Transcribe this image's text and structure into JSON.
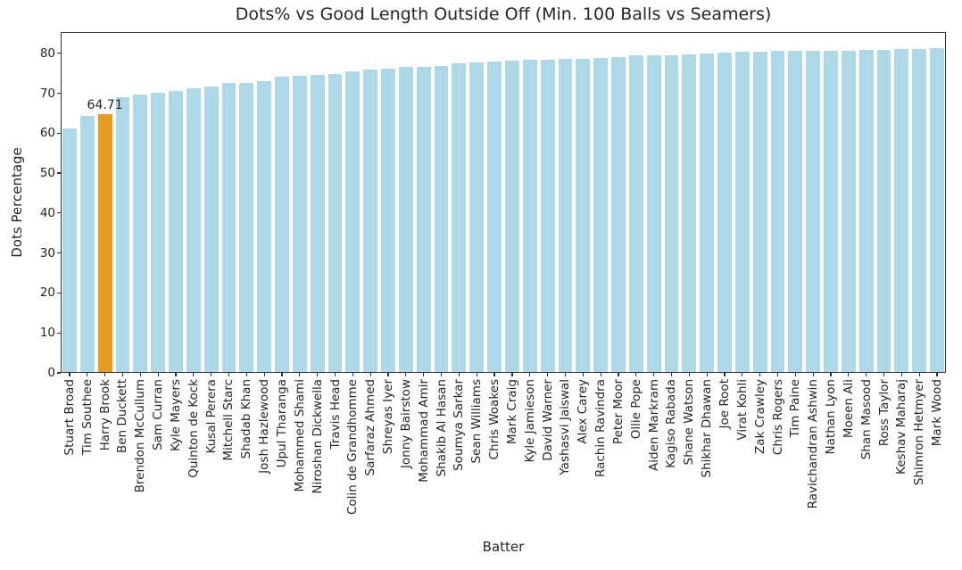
{
  "chart_data": {
    "type": "bar",
    "title": "Dots% vs Good Length Outside Off (Min. 100 Balls vs Seamers)",
    "xlabel": "Batter",
    "ylabel": "Dots Percentage",
    "categories": [
      "Stuart Broad",
      "Tim Southee",
      "Harry Brook",
      "Ben Duckett",
      "Brendon McCullum",
      "Sam Curran",
      "Kyle Mayers",
      "Quinton de Kock",
      "Kusal Perera",
      "Mitchell Starc",
      "Shadab Khan",
      "Josh Hazlewood",
      "Upul Tharanga",
      "Mohammed Shami",
      "Niroshan Dickwella",
      "Travis Head",
      "Colin de Grandhomme",
      "Sarfaraz Ahmed",
      "Shreyas Iyer",
      "Jonny Bairstow",
      "Mohammad Amir",
      "Shakib Al Hasan",
      "Soumya Sarkar",
      "Sean Williams",
      "Chris Woakes",
      "Mark Craig",
      "Kyle Jamieson",
      "David Warner",
      "Yashasvi Jaiswal",
      "Alex Carey",
      "Rachin Ravindra",
      "Peter Moor",
      "Ollie Pope",
      "Aiden Markram",
      "Kagiso Rabada",
      "Shane Watson",
      "Shikhar Dhawan",
      "Joe Root",
      "Virat Kohli",
      "Zak Crawley",
      "Chris Rogers",
      "Tim Paine",
      "Ravichandran Ashwin",
      "Nathan Lyon",
      "Moeen Ali",
      "Shan Masood",
      "Ross Taylor",
      "Keshav Maharaj",
      "Shimron Hetmyer",
      "Mark Wood"
    ],
    "values": [
      61.2,
      64.4,
      64.71,
      69.1,
      69.7,
      70.1,
      70.6,
      71.2,
      71.7,
      72.5,
      72.6,
      73.1,
      74.2,
      74.3,
      74.5,
      74.9,
      75.5,
      75.9,
      76.2,
      76.5,
      76.6,
      76.9,
      77.5,
      77.8,
      78.0,
      78.1,
      78.3,
      78.4,
      78.5,
      78.7,
      78.9,
      79.1,
      79.4,
      79.5,
      79.6,
      79.8,
      79.9,
      80.1,
      80.3,
      80.4,
      80.5,
      80.5,
      80.6,
      80.6,
      80.7,
      80.8,
      80.9,
      81.0,
      81.1,
      81.2
    ],
    "highlight": {
      "category": "Harry Brook",
      "value": 64.71
    },
    "annotations": [
      {
        "category": "Harry Brook",
        "text": "64.71"
      }
    ],
    "yticks": [
      0,
      10,
      20,
      30,
      40,
      50,
      60,
      70,
      80
    ],
    "ylim": [
      0,
      85.3
    ],
    "grid": false,
    "legend": null,
    "sort": "ascending",
    "colors": {
      "bar": "#ADD8E6",
      "highlight": "#E49B20",
      "axis": "#333333",
      "text": "#262626",
      "background": "#FFFFFF"
    }
  }
}
